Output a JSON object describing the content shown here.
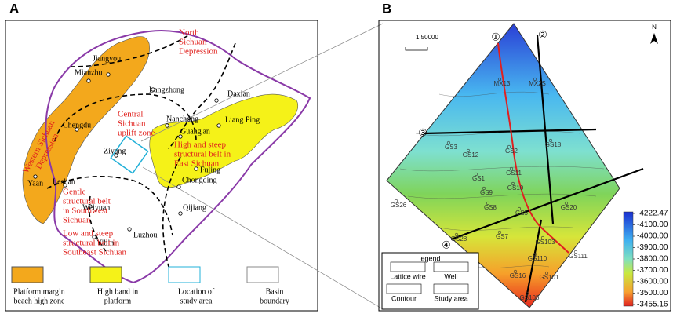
{
  "panel_a": {
    "label": "A",
    "cities": [
      "Jiangyou",
      "Mianzhu",
      "Langzhong",
      "Daxian",
      "Chengdu",
      "Nanchong",
      "Liang Ping",
      "Guang'an",
      "Ziyang",
      "Fuling",
      "Yaan",
      "Leshan",
      "Weiyuan",
      "Chongqing",
      "Qijiang",
      "Luzhou",
      "Yibin"
    ],
    "regions": [
      [
        "North",
        "Sichuan",
        "Depression"
      ],
      [
        "Central",
        "Sichuan",
        "uplift zone"
      ],
      [
        "High and steep",
        "structural belt in",
        "East Sichuan"
      ],
      [
        "Gentle",
        "structural belt",
        "in Southwest",
        "Sichuan"
      ],
      [
        "Low and steep",
        "structural belt in",
        "Southeast Sichuan"
      ]
    ],
    "western": [
      "Western Sichuan",
      "Depression"
    ],
    "legend": [
      [
        "Platform margin",
        "beach high zone"
      ],
      [
        "High band in",
        "platform"
      ],
      [
        "Location of",
        "study area"
      ],
      [
        "Basin",
        "boundary"
      ]
    ]
  },
  "panel_b": {
    "label": "B",
    "scale": "1:50000",
    "north": "N",
    "lines": [
      "①",
      "②",
      "③",
      "④"
    ],
    "wells": [
      "MX13",
      "MX2S",
      "GS3",
      "GS18",
      "GS12",
      "GS2",
      "GS1",
      "GS11",
      "GS9",
      "GS10",
      "GS8",
      "GS26",
      "GS5",
      "GS20",
      "GS7",
      "GS28",
      "GS103",
      "GS110",
      "GS111",
      "GS16",
      "GS101",
      "GS105"
    ],
    "legend": {
      "title": "legend",
      "items": [
        "Lattice wire",
        "Well",
        "Contour",
        "Study area"
      ]
    },
    "colorbar": [
      "-4222.47",
      "-4100.00",
      "-4000.00",
      "-3900.00",
      "-3800.00",
      "-3700.00",
      "-3600.00",
      "-3500.00",
      "-3455.16"
    ]
  }
}
